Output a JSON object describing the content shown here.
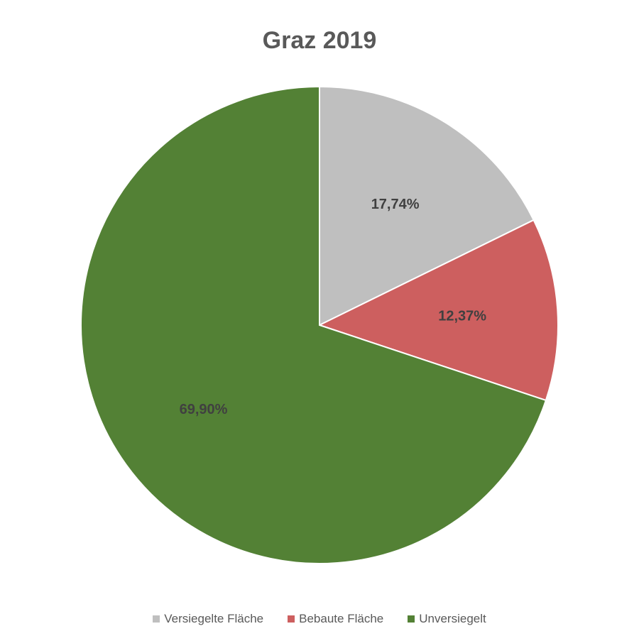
{
  "chart_data": {
    "type": "pie",
    "title": "Graz 2019",
    "slices": [
      {
        "label": "Versiegelte Fläche",
        "value": 17.74,
        "value_label": "17,74%",
        "color": "#bfbfbf"
      },
      {
        "label": "Bebaute Fläche",
        "value": 12.37,
        "value_label": "12,37%",
        "color": "#cd5f5f"
      },
      {
        "label": "Unversiegelt",
        "value": 69.9,
        "value_label": "69,90%",
        "color": "#538135"
      }
    ],
    "start_angle": "12 o'clock",
    "direction": "clockwise",
    "legend_position": "bottom"
  }
}
